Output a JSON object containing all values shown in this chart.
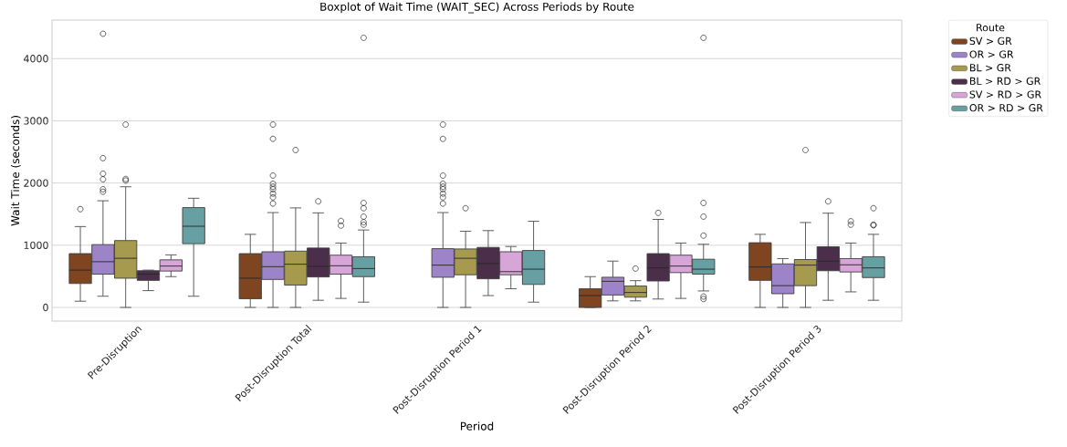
{
  "chart_data": {
    "type": "box",
    "title": "Boxplot of Wait Time (WAIT_SEC) Across Periods by Route",
    "xlabel": "Period",
    "ylabel": "Wait Time (seconds)",
    "legend_title": "Route",
    "categories": [
      "Pre-Disruption",
      "Post-Disruption Total",
      "Post-Disruption Period 1",
      "Post-Disruption Period 2",
      "Post-Disruption Period 3"
    ],
    "ylim": [
      -220,
      4620
    ],
    "yticks": [
      0,
      1000,
      2000,
      3000,
      4000
    ],
    "grid": "y",
    "legend": "top right",
    "series": [
      {
        "name": "SV > GR",
        "color": "#7f4420",
        "boxes": [
          {
            "low": 100,
            "q1": 385,
            "median": 600,
            "q3": 865,
            "high": 1300,
            "outliers": [
              1580
            ]
          },
          {
            "low": 0,
            "q1": 140,
            "median": 470,
            "q3": 865,
            "high": 1175
          },
          null,
          {
            "low": 0,
            "q1": 0,
            "median": 190,
            "q3": 300,
            "high": 495
          },
          {
            "low": 0,
            "q1": 435,
            "median": 650,
            "q3": 1040,
            "high": 1175
          }
        ]
      },
      {
        "name": "OR > GR",
        "color": "#9d83c8",
        "boxes": [
          {
            "low": 180,
            "q1": 535,
            "median": 735,
            "q3": 1010,
            "high": 1715,
            "outliers": [
              4400,
              2400,
              2150,
              2060,
              1900,
              1860
            ]
          },
          {
            "low": 0,
            "q1": 450,
            "median": 655,
            "q3": 895,
            "high": 1525,
            "outliers": [
              2940,
              2710,
              2120,
              1990,
              1940,
              1900,
              1830,
              1770,
              1670
            ]
          },
          {
            "low": 0,
            "q1": 485,
            "median": 680,
            "q3": 945,
            "high": 1525,
            "outliers": [
              2940,
              2710,
              2120,
              1990,
              1940,
              1900,
              1830,
              1770,
              1670
            ]
          },
          {
            "low": 105,
            "q1": 200,
            "median": 420,
            "q3": 485,
            "high": 745
          },
          {
            "low": 0,
            "q1": 220,
            "median": 350,
            "q3": 700,
            "high": 785
          }
        ]
      },
      {
        "name": "BL > GR",
        "color": "#a69a4e",
        "boxes": [
          {
            "low": 0,
            "q1": 470,
            "median": 790,
            "q3": 1075,
            "high": 1940,
            "outliers": [
              2940,
              2065,
              2040
            ]
          },
          {
            "low": 0,
            "q1": 360,
            "median": 695,
            "q3": 905,
            "high": 1600,
            "outliers": [
              2530
            ]
          },
          {
            "low": 0,
            "q1": 525,
            "median": 790,
            "q3": 940,
            "high": 1225,
            "outliers": [
              1595
            ]
          },
          {
            "low": 105,
            "q1": 165,
            "median": 240,
            "q3": 345,
            "high": 430,
            "outliers": [
              625
            ]
          },
          {
            "low": 0,
            "q1": 350,
            "median": 680,
            "q3": 770,
            "high": 1365,
            "outliers": [
              2530
            ]
          }
        ]
      },
      {
        "name": "BL > RD > GR",
        "color": "#4b2f4a",
        "boxes": [
          {
            "low": 270,
            "q1": 435,
            "median": 535,
            "q3": 590,
            "high": 600
          },
          {
            "low": 115,
            "q1": 490,
            "median": 660,
            "q3": 955,
            "high": 1520,
            "outliers": [
              1705
            ]
          },
          {
            "low": 190,
            "q1": 460,
            "median": 705,
            "q3": 965,
            "high": 1235
          },
          {
            "low": 135,
            "q1": 425,
            "median": 635,
            "q3": 865,
            "high": 1415,
            "outliers": [
              1520
            ]
          },
          {
            "low": 115,
            "q1": 590,
            "median": 745,
            "q3": 975,
            "high": 1515,
            "outliers": [
              1705
            ]
          }
        ]
      },
      {
        "name": "SV > RD > GR",
        "color": "#d7a5d7",
        "boxes": [
          {
            "low": 495,
            "q1": 585,
            "median": 665,
            "q3": 765,
            "high": 845
          },
          {
            "low": 145,
            "q1": 535,
            "median": 670,
            "q3": 840,
            "high": 1035,
            "outliers": [
              1390,
              1315
            ]
          },
          {
            "low": 300,
            "q1": 525,
            "median": 575,
            "q3": 895,
            "high": 980
          },
          {
            "low": 145,
            "q1": 560,
            "median": 665,
            "q3": 840,
            "high": 1035
          },
          {
            "low": 250,
            "q1": 570,
            "median": 685,
            "q3": 785,
            "high": 1035,
            "outliers": [
              1385,
              1330
            ]
          }
        ]
      },
      {
        "name": "OR > RD > GR",
        "color": "#67a0a3",
        "boxes": [
          {
            "low": 180,
            "q1": 1025,
            "median": 1305,
            "q3": 1605,
            "high": 1755
          },
          {
            "low": 85,
            "q1": 495,
            "median": 625,
            "q3": 815,
            "high": 1245,
            "outliers": [
              4335,
              1680,
              1595,
              1460,
              1370,
              1330
            ]
          },
          {
            "low": 85,
            "q1": 370,
            "median": 615,
            "q3": 915,
            "high": 1385
          },
          {
            "low": 265,
            "q1": 535,
            "median": 615,
            "q3": 775,
            "high": 1015,
            "outliers": [
              4335,
              1680,
              1460,
              1155,
              175,
              135
            ]
          },
          {
            "low": 115,
            "q1": 480,
            "median": 635,
            "q3": 815,
            "high": 1175,
            "outliers": [
              1595,
              1330,
              1320
            ]
          }
        ]
      }
    ]
  }
}
